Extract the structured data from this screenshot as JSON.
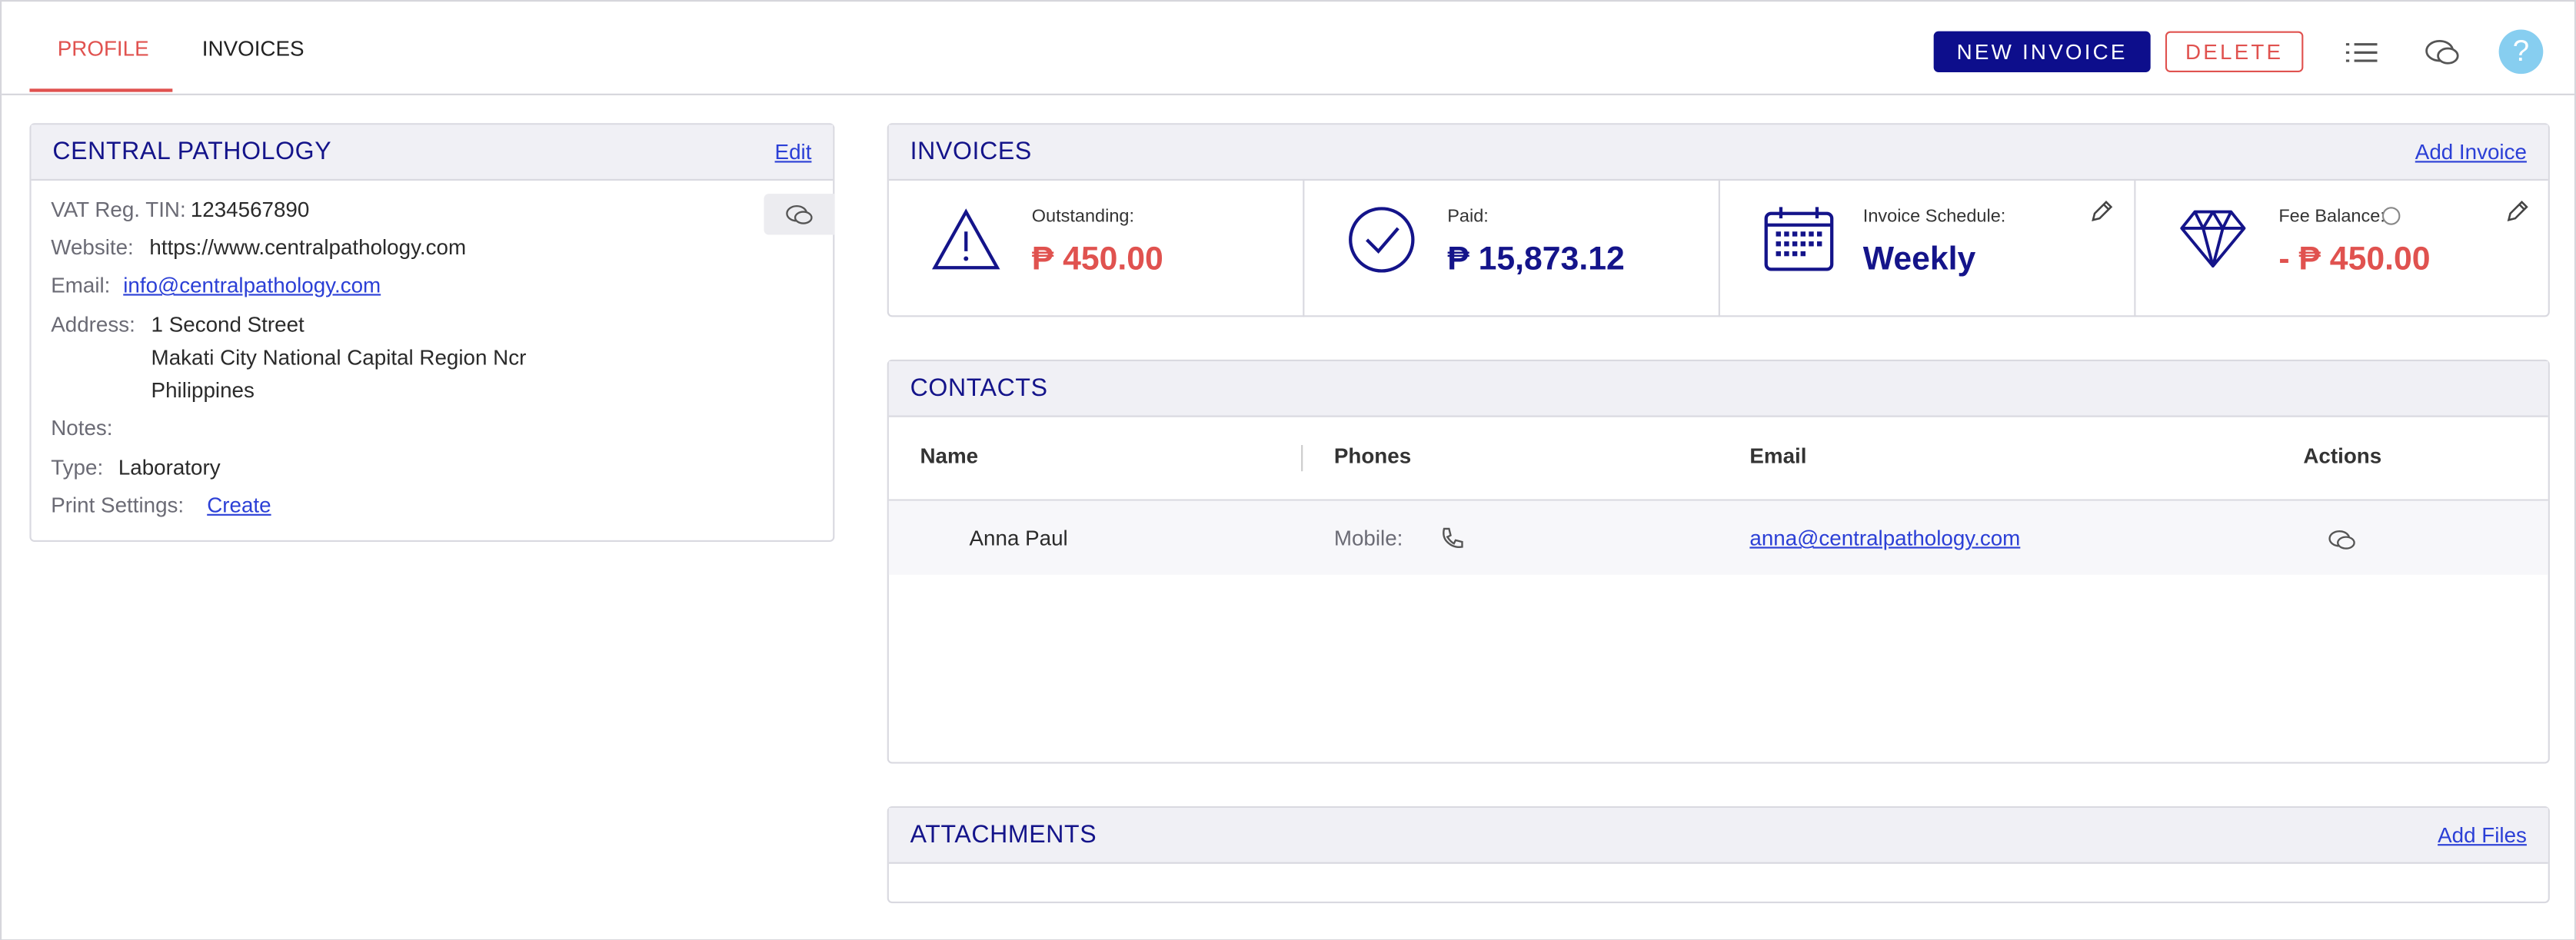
{
  "tabs": {
    "profile": "PROFILE",
    "invoices": "INVOICES"
  },
  "toolbar": {
    "new_invoice": "NEW INVOICE",
    "delete": "DELETE",
    "help": "?"
  },
  "profile": {
    "title": "CENTRAL PATHOLOGY",
    "edit": "Edit",
    "vat_label": "VAT Reg. TIN:",
    "vat": "1234567890",
    "website_label": "Website:",
    "website": "https://www.centralpathology.com",
    "email_label": "Email:",
    "email": "info@centralpathology.com",
    "address_label": "Address:",
    "address": [
      "1 Second Street",
      "Makati City National Capital Region Ncr",
      "Philippines"
    ],
    "notes_label": "Notes:",
    "type_label": "Type:",
    "type": "Laboratory",
    "print_label": "Print Settings:",
    "print_action": "Create"
  },
  "invoices": {
    "title": "INVOICES",
    "add": "Add Invoice",
    "stats": [
      {
        "label": "Outstanding:",
        "value": "₱ 450.00"
      },
      {
        "label": "Paid:",
        "value": "₱ 15,873.12"
      },
      {
        "label": "Invoice Schedule:",
        "value": "Weekly"
      },
      {
        "label": "Fee Balance:",
        "value": "- ₱ 450.00"
      }
    ]
  },
  "contacts": {
    "title": "CONTACTS",
    "columns": [
      "Name",
      "Phones",
      "Email",
      "Actions"
    ],
    "rows": [
      {
        "name": "Anna Paul",
        "phone_label": "Mobile:",
        "email": "anna@centralpathology.com"
      }
    ]
  },
  "attachments": {
    "title": "ATTACHMENTS",
    "add": "Add Files"
  }
}
